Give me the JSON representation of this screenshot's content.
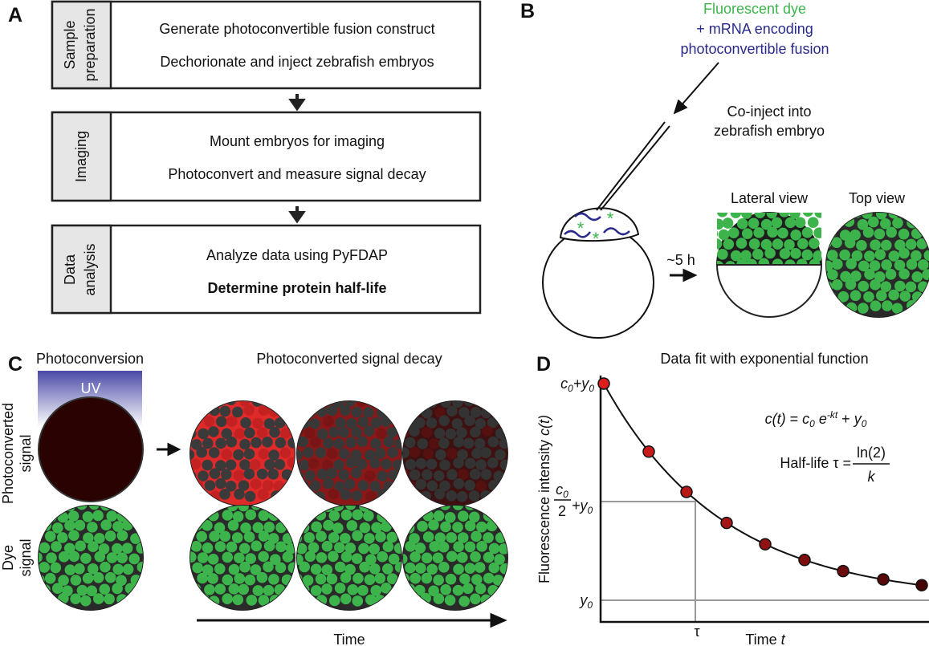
{
  "panel_a": {
    "letter": "A",
    "steps": [
      {
        "label": [
          "Sample",
          "preparation"
        ],
        "lines": [
          "Generate photoconvertible fusion construct",
          "Dechorionate and inject zebrafish embryos"
        ]
      },
      {
        "label": [
          "Imaging"
        ],
        "lines": [
          "Mount embryos for imaging",
          "Photoconvert and measure signal decay"
        ]
      },
      {
        "label": [
          "Data",
          "analysis"
        ],
        "lines": [
          "Analyze data using PyFDAP",
          "Determine protein half-life"
        ]
      }
    ]
  },
  "panel_b": {
    "letter": "B",
    "dye": "Fluorescent dye",
    "mrna": [
      "+ mRNA encoding",
      "photoconvertible fusion"
    ],
    "inject": [
      "Co-inject into",
      "zebrafish embryo"
    ],
    "time": "~5 h",
    "lateral": "Lateral view",
    "top": "Top view"
  },
  "panel_c": {
    "letter": "C",
    "photoconversion": "Photoconversion",
    "decay": "Photoconverted signal decay",
    "uv": "UV",
    "row1": [
      "Photoconverted",
      "signal"
    ],
    "row2": [
      "Dye",
      "signal"
    ],
    "time": "Time"
  },
  "panel_d": {
    "letter": "D",
    "title": "Data fit with exponential function",
    "ylabel": [
      "Fluorescence intensity ",
      "c(t)"
    ],
    "xlabel": [
      "Time ",
      "t"
    ],
    "top_tick": [
      "c",
      "0",
      "+y",
      "0"
    ],
    "half_tick": {
      "num": [
        "c",
        "0"
      ],
      "den": "2",
      "rest": [
        "+y",
        "0"
      ]
    },
    "y0_tick": [
      "y",
      "0"
    ],
    "tau": "τ",
    "eq": [
      "c(t)",
      " = ",
      "c",
      "0",
      " e",
      "-kt",
      " + ",
      "y",
      "0"
    ],
    "half_life": {
      "text": "Half-life τ = ",
      "num": "ln(2)",
      "den": "k"
    }
  }
}
